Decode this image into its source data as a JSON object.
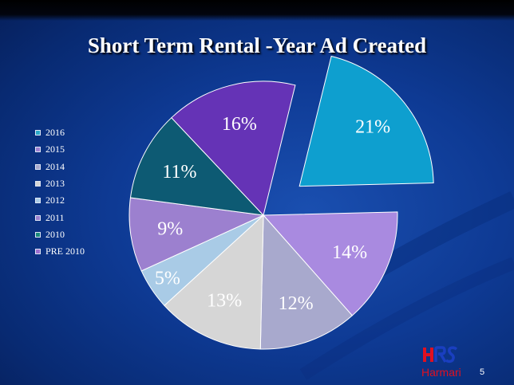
{
  "chart_data": {
    "type": "pie",
    "title": "Short Term Rental -Year Ad Created",
    "categories": [
      "2016",
      "2015",
      "2014",
      "2013",
      "2012",
      "2011",
      "2010",
      "PRE 2010"
    ],
    "values": [
      21,
      14,
      12,
      13,
      5,
      9,
      11,
      16
    ],
    "value_labels": [
      "21%",
      "14%",
      "12%",
      "13%",
      "5%",
      "9%",
      "11%",
      "16%"
    ],
    "colors": [
      "#0e9fcf",
      "#a98ae0",
      "#a8a9cd",
      "#d6d6d6",
      "#a9cbe6",
      "#9c80cf",
      "#0d5a73",
      "#6533b6"
    ],
    "legend_colors": [
      "#2aa8c8",
      "#9d7fd0",
      "#a8a9cd",
      "#d6d6d6",
      "#a9cbe6",
      "#9c80cf",
      "#1a8a7a",
      "#9c6fd0"
    ],
    "exploded": [
      "2016"
    ],
    "legend": "left"
  },
  "footer": {
    "brand": "Harmari",
    "page_number": "5"
  }
}
